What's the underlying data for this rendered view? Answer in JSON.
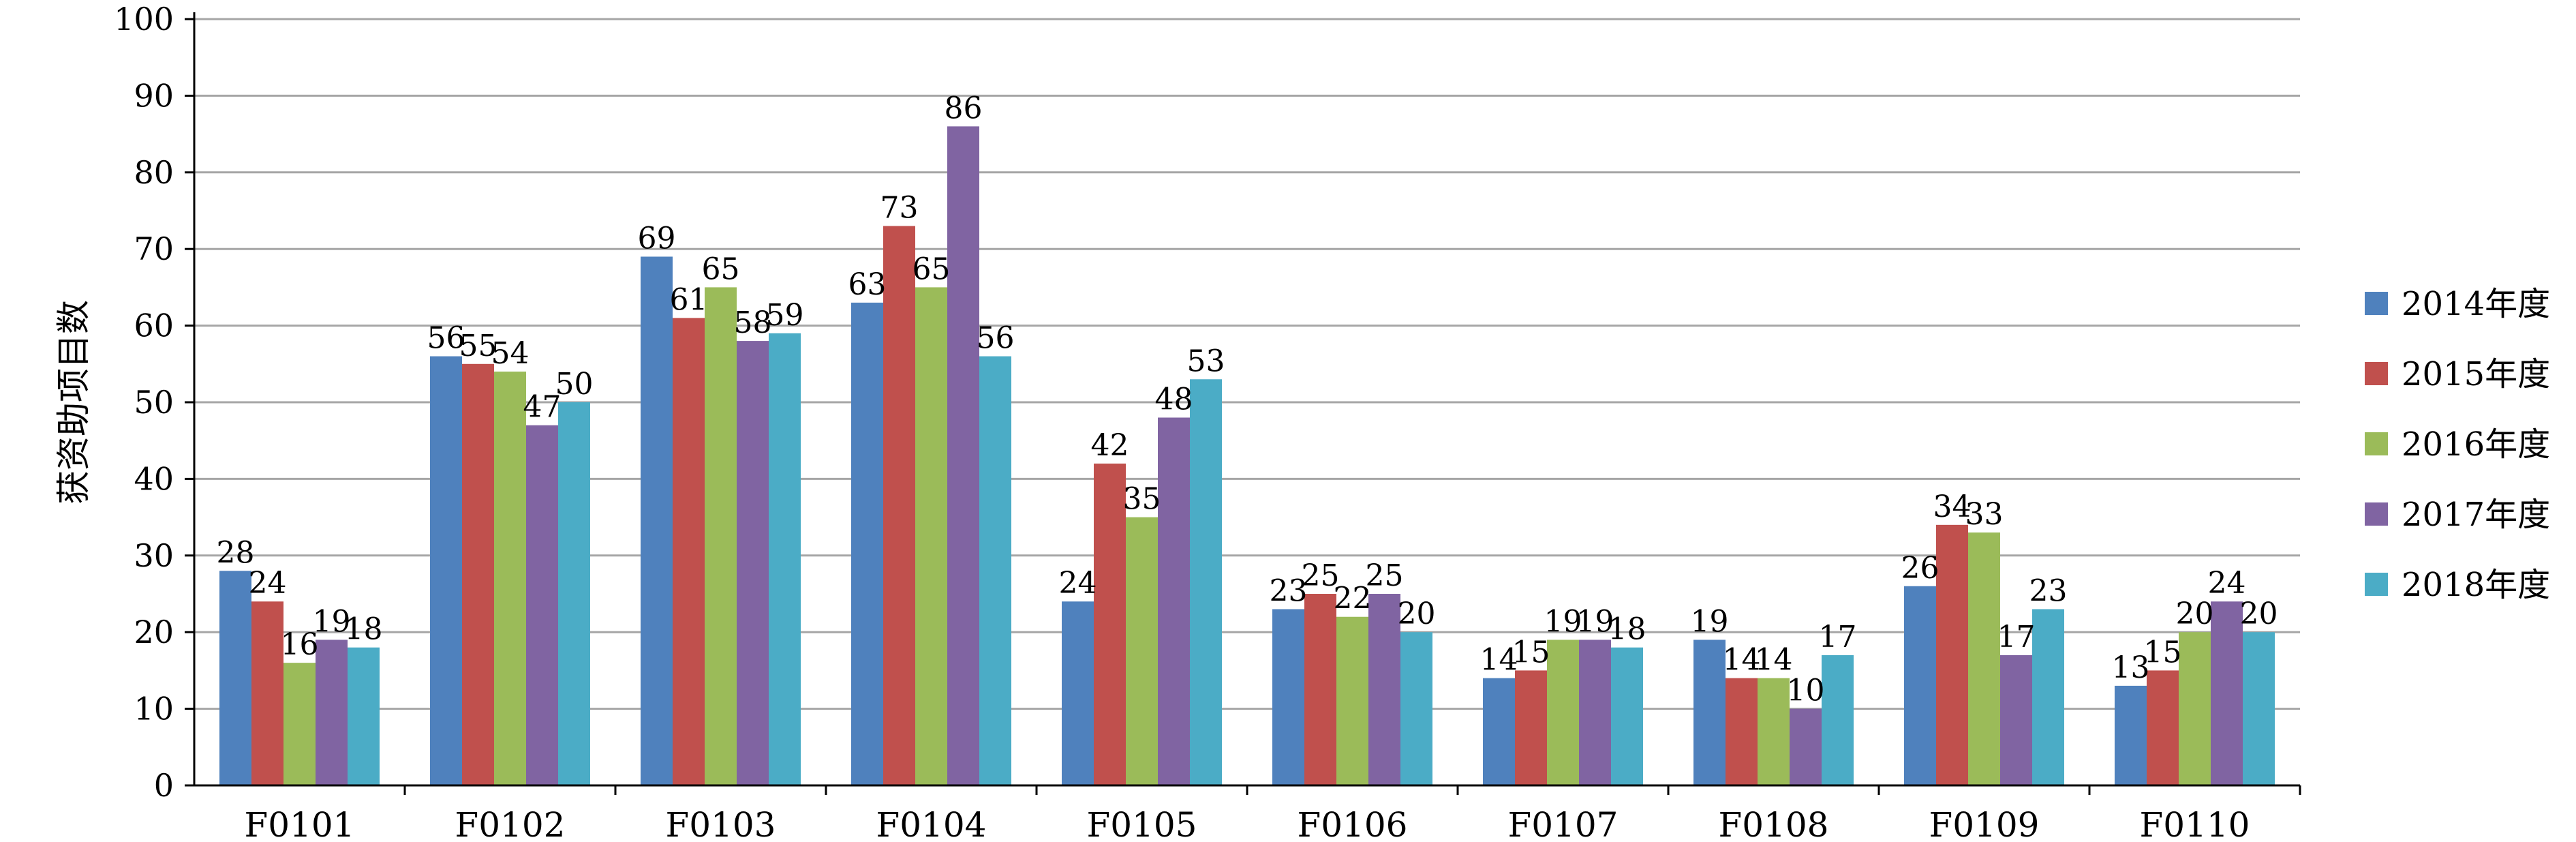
{
  "chart_data": {
    "type": "bar",
    "title": "",
    "xlabel": "",
    "ylabel": "获资助项目数",
    "ylim": [
      0,
      100
    ],
    "yticks": [
      0,
      10,
      20,
      30,
      40,
      50,
      60,
      70,
      80,
      90,
      100
    ],
    "grid": "horizontal",
    "legend_position": "right",
    "categories": [
      "F0101",
      "F0102",
      "F0103",
      "F0104",
      "F0105",
      "F0106",
      "F0107",
      "F0108",
      "F0109",
      "F0110"
    ],
    "series": [
      {
        "name": "2014年度",
        "color": "#4F81BD",
        "values": [
          28,
          56,
          69,
          63,
          24,
          23,
          14,
          19,
          26,
          13
        ]
      },
      {
        "name": "2015年度",
        "color": "#C0504D",
        "values": [
          24,
          55,
          61,
          73,
          42,
          25,
          15,
          14,
          34,
          15
        ]
      },
      {
        "name": "2016年度",
        "color": "#9BBB59",
        "values": [
          16,
          54,
          65,
          65,
          35,
          22,
          19,
          14,
          33,
          20
        ]
      },
      {
        "name": "2017年度",
        "color": "#8064A2",
        "values": [
          19,
          47,
          58,
          86,
          48,
          25,
          19,
          10,
          17,
          24
        ]
      },
      {
        "name": "2018年度",
        "color": "#4BACC6",
        "values": [
          18,
          50,
          59,
          56,
          53,
          20,
          18,
          17,
          23,
          20
        ]
      }
    ]
  }
}
